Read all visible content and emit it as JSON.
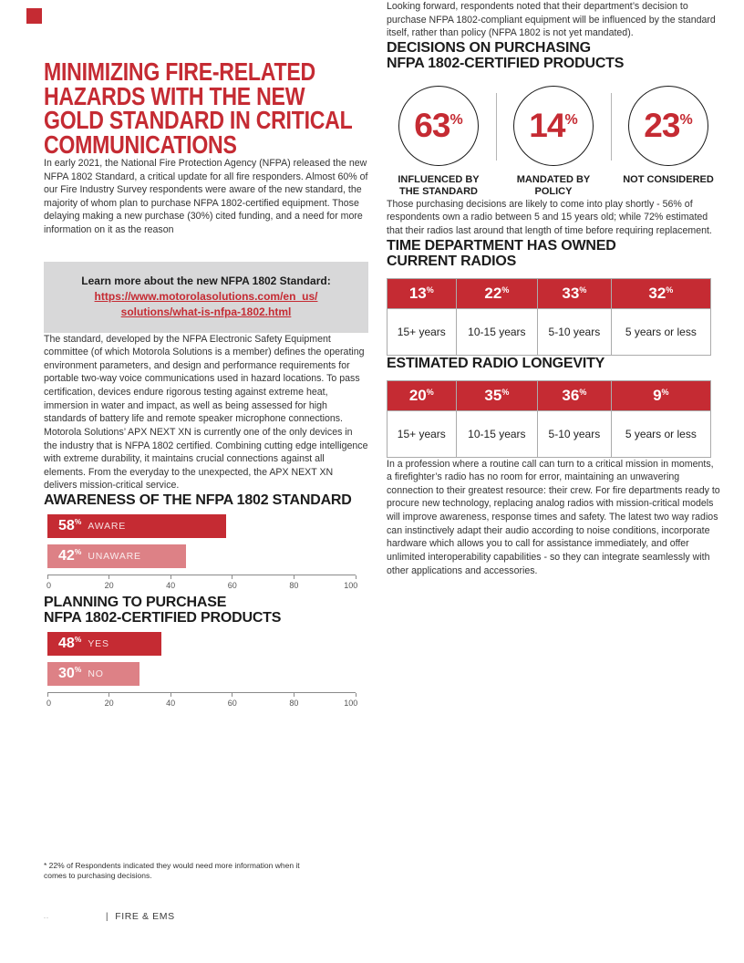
{
  "colors": {
    "brand_red": "#C52B33",
    "light_red": "#DD8186",
    "callout_gray": "#D8D8D9",
    "text": "#333333"
  },
  "symbols": {
    "percent": "%"
  },
  "left_column": {
    "title_lines": [
      "MINIMIZING FIRE-RELATED",
      "HAZARDS WITH THE NEW",
      "GOLD STANDARD IN CRITICAL",
      "COMMUNICATIONS"
    ],
    "intro_paragraph": "In early 2021, the National Fire Protection Agency (NFPA) released the new NFPA 1802 Standard, a critical update for all fire responders. Almost 60% of our Fire Industry Survey respondents were aware of the new standard, the majority of whom plan to purchase NFPA 1802-certified equipment. Those delaying making a new purchase (30%) cited funding, and a need for more information on it as the reason",
    "callout": {
      "heading": "Learn more about the new NFPA 1802 Standard:",
      "link_lines": [
        "https://www.motorolasolutions.com/en_us/",
        "solutions/what-is-nfpa-1802.html"
      ]
    },
    "standard_paragraph": "The standard, developed by the NFPA Electronic Safety Equipment committee (of which Motorola Solutions is a member) defines the operating environment parameters, and design and performance requirements for portable two-way voice communications used in hazard locations. To pass certification, devices endure rigorous testing against extreme heat, immersion in water and impact, as well as being assessed for high standards of battery life and remote speaker microphone connections.",
    "apx_paragraph": "Motorola Solutions’ APX NEXT XN is currently one of the only devices in the industry that is NFPA 1802 certified. Combining cutting edge intelligence with extreme durability, it maintains crucial connections against all elements. From the everyday to the unexpected, the APX NEXT XN delivers mission-critical service.",
    "footnote_lines": [
      "* 22% of Respondents indicated they would need more information when it",
      "comes to purchasing decisions."
    ]
  },
  "right_column": {
    "looking_forward_paragraph": "Looking forward, respondents noted that their department’s decision to purchase NFPA 1802-compliant equipment will be influenced by the standard itself, rather than policy (NFPA 1802 is not yet mandated).",
    "purchasing_paragraph": "Those purchasing decisions are likely to come into play shortly - 56% of respondents own a radio between 5 and 15 years old; while 72% estimated that their radios last around that length of time before requiring replacement.",
    "closing_paragraph": "In a profession where a routine call can turn to a critical mission in moments, a firefighter’s radio has no room for error, maintaining an unwavering connection to their greatest resource: their crew. For fire departments ready to procure new technology, replacing analog radios with mission-critical models will improve awareness, response times and safety. The latest two way radios can instinctively adapt their audio according to noise conditions, incorporate hardware which allows you to call for assistance immediately, and offer unlimited interoperability capabilities - so they can integrate seamlessly with other applications and accessories."
  },
  "footer": {
    "mark": "..",
    "divider": "|",
    "label": "FIRE & EMS"
  },
  "chart_data": [
    {
      "id": "awareness",
      "type": "bar",
      "orientation": "horizontal",
      "title": "AWARENESS OF THE NFPA 1802 STANDARD",
      "categories": [
        "AWARE",
        "UNAWARE"
      ],
      "values": [
        58,
        42
      ],
      "bar_display_widths_pct": [
        58,
        45
      ],
      "xlim": [
        0,
        100
      ],
      "xticks": [
        0,
        20,
        40,
        60,
        80,
        100
      ],
      "bar_colors": [
        "#C52B33",
        "#DD8186"
      ],
      "grid": false,
      "legend": "none"
    },
    {
      "id": "planning",
      "type": "bar",
      "orientation": "horizontal",
      "title": "PLANNING TO PURCHASE NFPA 1802-CERTIFIED PRODUCTS",
      "title_lines": [
        "PLANNING TO PURCHASE",
        "NFPA 1802-CERTIFIED PRODUCTS"
      ],
      "categories": [
        "YES",
        "NO"
      ],
      "values": [
        48,
        30
      ],
      "bar_display_widths_pct": [
        37,
        30
      ],
      "xlim": [
        0,
        100
      ],
      "xticks": [
        0,
        20,
        40,
        60,
        80,
        100
      ],
      "bar_colors": [
        "#C52B33",
        "#DD8186"
      ],
      "grid": false,
      "legend": "none"
    },
    {
      "id": "decisions",
      "type": "big-number",
      "title": "DECISIONS ON PURCHASING NFPA 1802-CERTIFIED PRODUCTS",
      "title_lines": [
        "DECISIONS ON PURCHASING",
        "NFPA 1802-CERTIFIED PRODUCTS"
      ],
      "values": [
        63,
        14,
        23
      ],
      "labels": [
        [
          "INFLUENCED BY",
          "THE STANDARD"
        ],
        [
          "MANDATED BY",
          "POLICY"
        ],
        [
          "NOT CONSIDERED"
        ]
      ]
    },
    {
      "id": "owned",
      "type": "table",
      "title": "TIME DEPARTMENT HAS OWNED CURRENT RADIOS",
      "title_lines": [
        "TIME DEPARTMENT HAS OWNED",
        "CURRENT RADIOS"
      ],
      "columns": [
        "15+ years",
        "10-15 years",
        "5-10 years",
        "5 years or less"
      ],
      "values": [
        13,
        22,
        33,
        32
      ]
    },
    {
      "id": "longevity",
      "type": "table",
      "title": "ESTIMATED RADIO LONGEVITY",
      "title_lines": [
        "ESTIMATED RADIO LONGEVITY"
      ],
      "columns": [
        "15+ years",
        "10-15 years",
        "5-10 years",
        "5 years or less"
      ],
      "values": [
        20,
        35,
        36,
        9
      ]
    }
  ]
}
